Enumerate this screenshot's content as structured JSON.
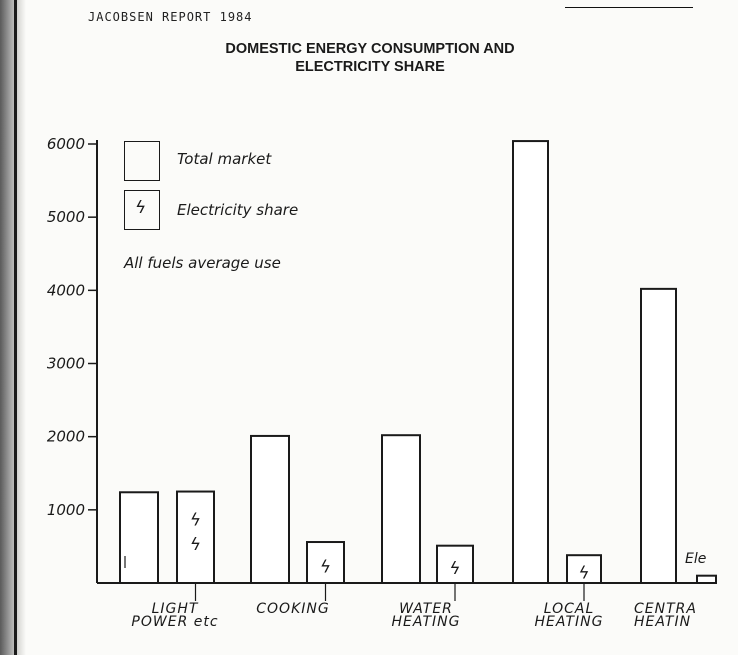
{
  "document": {
    "header": "JACOBSEN REPORT 1984"
  },
  "chart_data": {
    "type": "bar",
    "title_lines": [
      "DOMESTIC ENERGY CONSUMPTION AND",
      "ELECTRICITY SHARE"
    ],
    "categories": [
      {
        "line1": "LIGHT",
        "line2": "POWER etc"
      },
      {
        "line1": "COOKING",
        "line2": ""
      },
      {
        "line1": "WATER",
        "line2": "HEATING"
      },
      {
        "line1": "LOCAL",
        "line2": "HEATING"
      },
      {
        "line1": "CENTRA",
        "line2": "HEATIN"
      }
    ],
    "series": [
      {
        "name": "Total market",
        "values": [
          1240,
          2010,
          2020,
          6040,
          4020
        ]
      },
      {
        "name": "Electricity share",
        "values": [
          1250,
          560,
          510,
          380,
          100
        ]
      }
    ],
    "yticks": [
      1000,
      2000,
      3000,
      4000,
      5000,
      6000
    ],
    "ytick_labels": [
      "1000",
      "2000",
      "3000",
      "4000",
      "5000",
      "6000"
    ],
    "ylim": [
      0,
      6000
    ],
    "note": "All fuels average use",
    "legend_glyph": "ϟ",
    "partial_label": "Ele",
    "legend_position": "top-left",
    "grid": false
  }
}
